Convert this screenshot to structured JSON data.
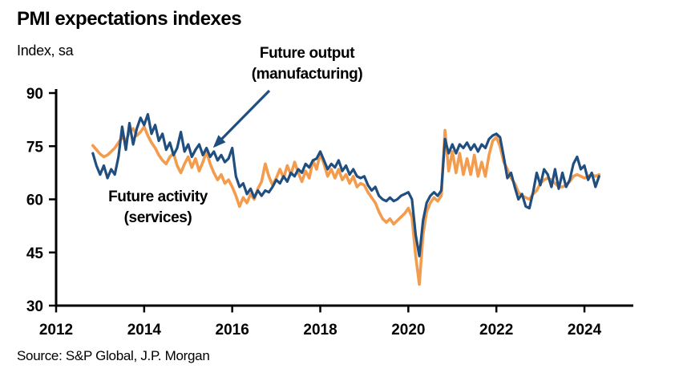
{
  "page": {
    "title": "PMI expectations indexes",
    "subtitle": "Index, sa",
    "source": "Source: S&P Global, J.P. Morgan"
  },
  "annotations": {
    "manufacturing": {
      "line1": "Future output",
      "line2": "(manufacturing)"
    },
    "services": {
      "line1": "Future activity",
      "line2": "(services)"
    }
  },
  "colors": {
    "manufacturing_blue": "#204E7F",
    "services_orange": "#F49C4D",
    "axis_black": "#000000"
  },
  "chart_data": {
    "type": "line",
    "title": "PMI expectations indexes",
    "ylabel": "Index, sa",
    "xlabel": "",
    "grid": false,
    "legend_position": "in-plot text annotations with arrow",
    "ylim": [
      30,
      90
    ],
    "xlim": [
      2012,
      2025.1
    ],
    "y_ticks": [
      30,
      45,
      60,
      75,
      90
    ],
    "x_ticks": [
      2012,
      2014,
      2016,
      2018,
      2020,
      2022,
      2024
    ],
    "frequency": "monthly",
    "x": [
      "2012-11",
      "2012-12",
      "2013-01",
      "2013-02",
      "2013-03",
      "2013-04",
      "2013-05",
      "2013-06",
      "2013-07",
      "2013-08",
      "2013-09",
      "2013-10",
      "2013-11",
      "2013-12",
      "2014-01",
      "2014-02",
      "2014-03",
      "2014-04",
      "2014-05",
      "2014-06",
      "2014-07",
      "2014-08",
      "2014-09",
      "2014-10",
      "2014-11",
      "2014-12",
      "2015-01",
      "2015-02",
      "2015-03",
      "2015-04",
      "2015-05",
      "2015-06",
      "2015-07",
      "2015-08",
      "2015-09",
      "2015-10",
      "2015-11",
      "2015-12",
      "2016-01",
      "2016-02",
      "2016-03",
      "2016-04",
      "2016-05",
      "2016-06",
      "2016-07",
      "2016-08",
      "2016-09",
      "2016-10",
      "2016-11",
      "2016-12",
      "2017-01",
      "2017-02",
      "2017-03",
      "2017-04",
      "2017-05",
      "2017-06",
      "2017-07",
      "2017-08",
      "2017-09",
      "2017-10",
      "2017-11",
      "2017-12",
      "2018-01",
      "2018-02",
      "2018-03",
      "2018-04",
      "2018-05",
      "2018-06",
      "2018-07",
      "2018-08",
      "2018-09",
      "2018-10",
      "2018-11",
      "2018-12",
      "2019-01",
      "2019-02",
      "2019-03",
      "2019-04",
      "2019-05",
      "2019-06",
      "2019-07",
      "2019-08",
      "2019-09",
      "2019-10",
      "2019-11",
      "2019-12",
      "2020-01",
      "2020-02",
      "2020-03",
      "2020-04",
      "2020-05",
      "2020-06",
      "2020-07",
      "2020-08",
      "2020-09",
      "2020-10",
      "2020-11",
      "2020-12",
      "2021-01",
      "2021-02",
      "2021-03",
      "2021-04",
      "2021-05",
      "2021-06",
      "2021-07",
      "2021-08",
      "2021-09",
      "2021-10",
      "2021-11",
      "2021-12",
      "2022-01",
      "2022-02",
      "2022-03",
      "2022-04",
      "2022-05",
      "2022-06",
      "2022-07",
      "2022-08",
      "2022-09",
      "2022-10",
      "2022-11",
      "2022-12",
      "2023-01",
      "2023-02",
      "2023-03",
      "2023-04",
      "2023-05",
      "2023-06",
      "2023-07",
      "2023-08",
      "2023-09",
      "2023-10",
      "2023-11",
      "2023-12",
      "2024-01",
      "2024-02",
      "2024-03",
      "2024-04",
      "2024-05"
    ],
    "series": [
      {
        "name": "Future activity (services)",
        "color": "#F49C4D",
        "values": [
          75.2,
          74,
          72.8,
          72,
          72.5,
          73.5,
          74.5,
          76,
          77.5,
          76.5,
          79,
          80,
          78,
          79,
          80.5,
          78,
          76,
          74.5,
          72.5,
          71,
          70,
          72,
          73,
          69.5,
          67.5,
          70,
          72,
          69,
          71.5,
          68,
          70.5,
          73.5,
          70,
          67.5,
          65.5,
          67,
          64.5,
          65.5,
          63.5,
          61,
          58,
          60.5,
          59,
          61.5,
          60,
          63,
          65,
          70,
          66.5,
          64,
          66,
          68.5,
          66,
          69.5,
          67,
          70.5,
          67.5,
          65,
          68,
          66,
          71,
          68.5,
          73,
          70,
          66.5,
          68.5,
          66,
          68.5,
          65.5,
          67,
          64.5,
          66.5,
          63.5,
          64.5,
          64,
          62,
          60.5,
          59,
          56.5,
          54.5,
          53.5,
          54.5,
          53,
          54,
          55,
          56,
          57.5,
          55,
          44,
          36,
          50,
          56.5,
          59,
          60.5,
          59.5,
          61,
          79.5,
          68,
          73.5,
          67.5,
          73,
          67,
          71.5,
          67,
          72.5,
          66.5,
          70.5,
          66.5,
          72.5,
          76.5,
          77.5,
          75,
          70.5,
          68.5,
          66,
          64.5,
          62,
          61,
          60.5,
          60,
          61.5,
          62.5,
          64.5,
          65.5,
          66,
          65.5,
          64.5,
          63.5,
          63.5,
          64,
          65,
          66.5,
          67,
          66.5,
          66,
          66.5,
          67,
          66.5,
          67
        ]
      },
      {
        "name": "Future output (manufacturing)",
        "color": "#204E7F",
        "values": [
          73,
          69.5,
          67,
          69.5,
          66,
          68.5,
          67,
          72,
          80.5,
          74,
          81.5,
          75.5,
          80,
          83,
          81,
          84,
          78.5,
          81,
          76.5,
          78.5,
          74,
          76,
          72.5,
          74.5,
          79,
          73.5,
          75.5,
          72,
          74,
          75.5,
          72.5,
          74.5,
          72,
          73.5,
          71,
          72.5,
          70.5,
          71.5,
          74.5,
          66.5,
          63.5,
          64.5,
          61.5,
          63,
          60.5,
          62.5,
          61,
          62.5,
          62,
          63.5,
          65.5,
          64.5,
          66.5,
          65,
          67.5,
          66.5,
          68.5,
          67.5,
          70,
          69,
          71,
          71.5,
          73.5,
          71,
          68.5,
          70,
          69,
          71,
          68,
          69.5,
          67,
          68.5,
          66.5,
          66,
          66.5,
          64,
          62.5,
          63.5,
          61,
          60,
          59.5,
          60.5,
          59.5,
          60,
          61,
          61.5,
          62,
          60,
          50,
          44,
          54,
          59,
          61,
          62,
          61,
          62.5,
          77,
          73,
          75.5,
          73,
          75.5,
          74.5,
          76,
          74,
          75.5,
          73.5,
          75.5,
          74.5,
          77,
          78,
          78.5,
          77.5,
          72,
          66,
          67.5,
          63.5,
          60,
          61.5,
          58,
          57.5,
          62,
          67.5,
          64,
          68.5,
          67,
          63.5,
          68.5,
          63,
          67.5,
          63.5,
          65.5,
          70,
          72,
          68.5,
          69.5,
          65.5,
          67.5,
          63.5,
          66.5
        ]
      }
    ]
  }
}
